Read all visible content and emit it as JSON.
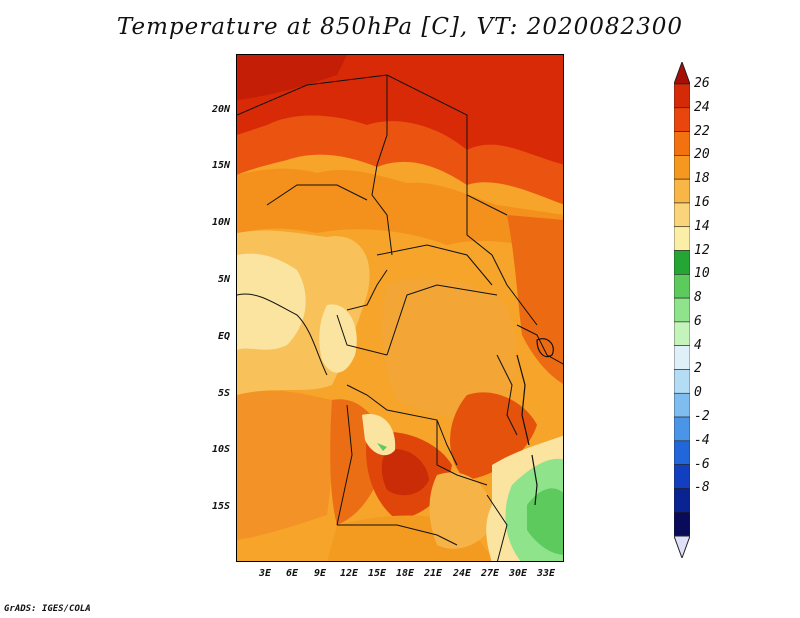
{
  "title": "Temperature at 850hPa [C], VT: 2020082300",
  "credit": "GrADS: IGES/COLA",
  "lat_labels": [
    "20N",
    "15N",
    "10N",
    "5N",
    "EQ",
    "5S",
    "10S",
    "15S"
  ],
  "lon_labels": [
    "3E",
    "6E",
    "9E",
    "12E",
    "15E",
    "18E",
    "21E",
    "24E",
    "27E",
    "30E",
    "33E"
  ],
  "colorbar": {
    "labels": [
      "26",
      "24",
      "22",
      "20",
      "18",
      "16",
      "14",
      "12",
      "10",
      "8",
      "6",
      "4",
      "2",
      "0",
      "-2",
      "-4",
      "-6",
      "-8"
    ],
    "colors": [
      "#a50f05",
      "#d42a08",
      "#e8460c",
      "#f3720f",
      "#f6981f",
      "#f8b646",
      "#f9d47a",
      "#fbefa8",
      "#23a633",
      "#5cca5c",
      "#8fe38a",
      "#c4f3bc",
      "#dff0f8",
      "#b4dcf4",
      "#7fbcef",
      "#4b95e8",
      "#2266dc",
      "#113fc0",
      "#0a2392",
      "#0a0a5a",
      "#e0e0f8"
    ]
  },
  "map": {
    "variable": "Temperature at 850hPa",
    "units": "C",
    "valid_time": "2020082300"
  }
}
